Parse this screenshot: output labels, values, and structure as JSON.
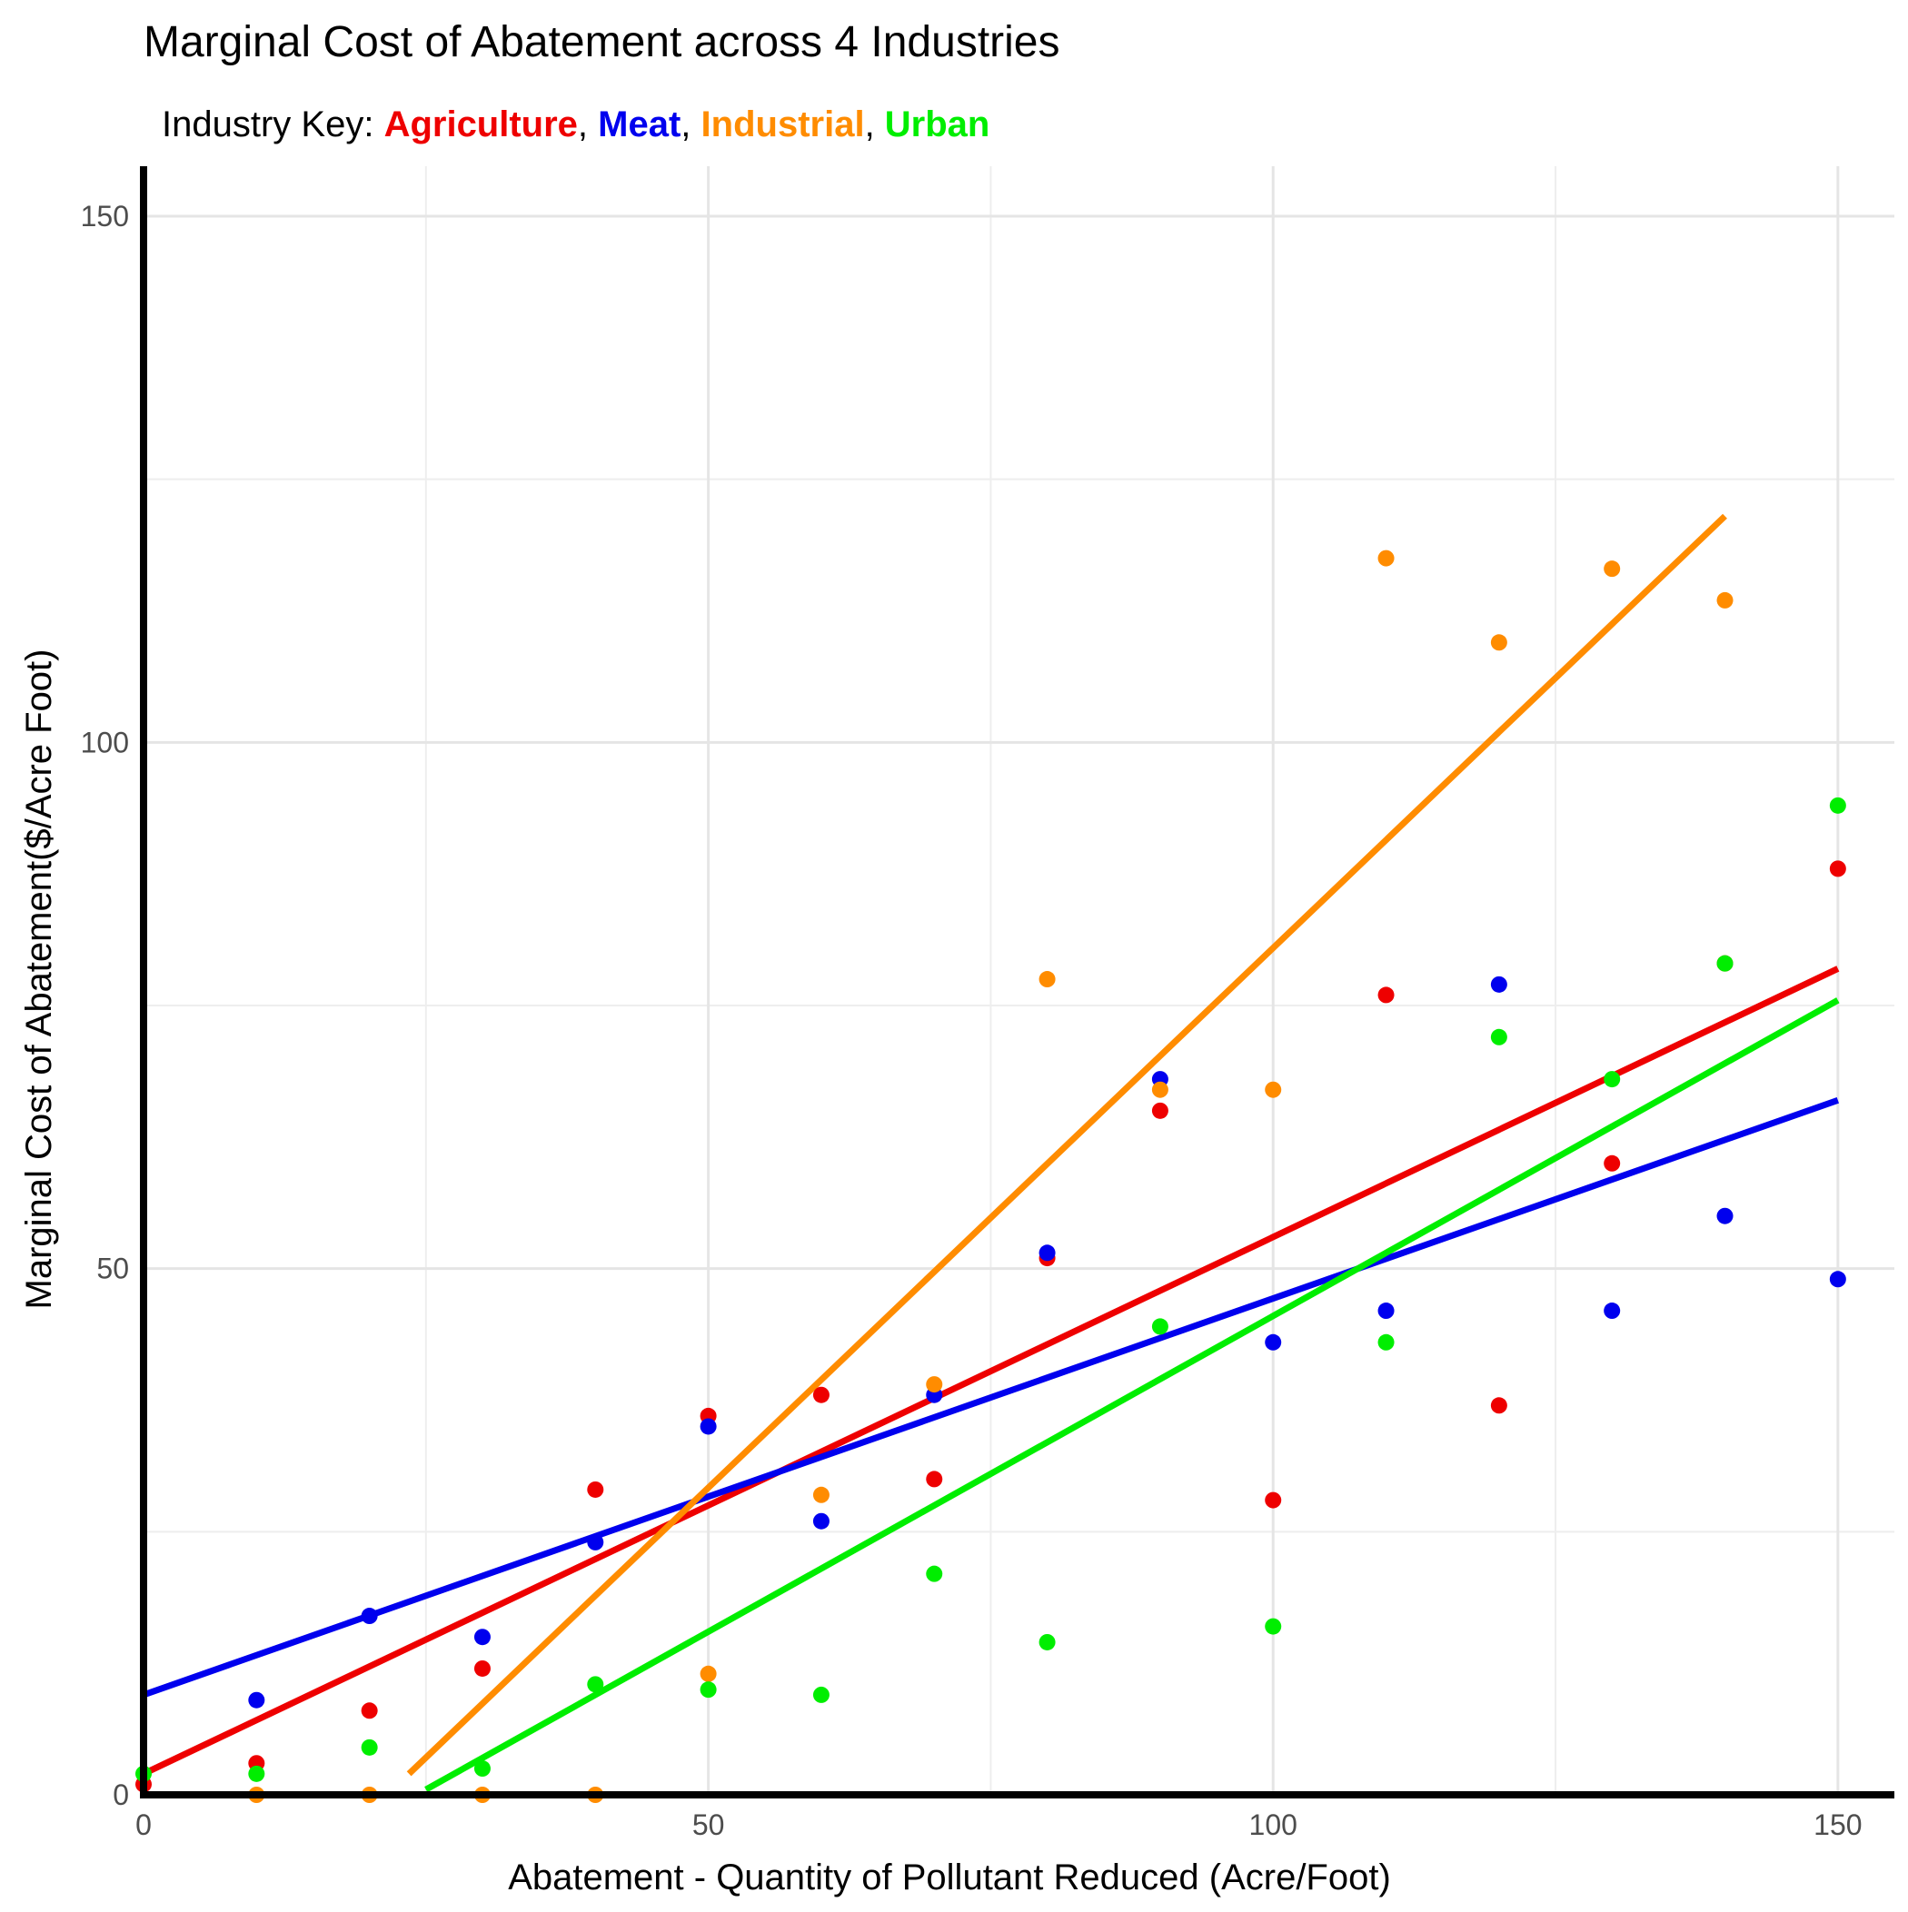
{
  "chart_data": {
    "type": "scatter",
    "title": "Marginal Cost of Abatement across 4 Industries",
    "subtitle_prefix": "Industry Key: ",
    "subtitle_separator": ", ",
    "xlabel": "Abatement - Quantity of Pollutant Reduced (Acre/Foot)",
    "ylabel": "Marginal Cost of Abatement($/Acre Foot)",
    "xlim": [
      0,
      155
    ],
    "ylim": [
      0,
      150
    ],
    "x_ticks": [
      0,
      50,
      100,
      150
    ],
    "y_ticks": [
      0,
      50,
      100,
      150
    ],
    "x_ticks_minor": [
      25,
      75,
      125
    ],
    "y_ticks_minor": [
      25,
      75,
      125
    ],
    "grid": true,
    "legend": "subtitle",
    "series": [
      {
        "name": "Agriculture",
        "color": "#ee0000",
        "x": [
          0,
          10,
          20,
          30,
          40,
          50,
          60,
          70,
          80,
          90,
          100,
          110,
          120,
          130,
          140,
          150
        ],
        "y": [
          1,
          3,
          8,
          12,
          29,
          36,
          38,
          30,
          51,
          65,
          28,
          76,
          37,
          60,
          79,
          88
        ],
        "fit_line": {
          "x": [
            0,
            150
          ],
          "y": [
            2,
            78.5
          ]
        }
      },
      {
        "name": "Meat",
        "color": "#0000ee",
        "x": [
          10,
          20,
          30,
          40,
          50,
          60,
          70,
          80,
          90,
          100,
          110,
          120,
          130,
          140,
          150
        ],
        "y": [
          9,
          17,
          15,
          24,
          35,
          26,
          38,
          51.5,
          68,
          43,
          46,
          77,
          46,
          55,
          49
        ],
        "fit_line": {
          "x": [
            0,
            150
          ],
          "y": [
            9.5,
            66
          ]
        }
      },
      {
        "name": "Industrial",
        "color": "#ff8c00",
        "x": [
          10,
          20,
          30,
          40,
          50,
          60,
          70,
          80,
          90,
          100,
          110,
          120,
          130,
          140
        ],
        "y": [
          0,
          0,
          0,
          0,
          11.5,
          28.5,
          39,
          77.5,
          67,
          67,
          117.5,
          109.5,
          116.5,
          113.5
        ],
        "fit_line": {
          "x": [
            23.5,
            140
          ],
          "y": [
            2,
            121.5
          ]
        }
      },
      {
        "name": "Urban",
        "color": "#00ee00",
        "x": [
          0,
          10,
          20,
          30,
          40,
          50,
          60,
          70,
          80,
          90,
          100,
          110,
          120,
          130,
          140,
          150
        ],
        "y": [
          2,
          2,
          4.5,
          2.5,
          10.5,
          10,
          9.5,
          21,
          14.5,
          44.5,
          16,
          43,
          72,
          68,
          79,
          94
        ],
        "fit_line": {
          "x": [
            25,
            150
          ],
          "y": [
            0.5,
            75.5
          ]
        }
      }
    ]
  }
}
